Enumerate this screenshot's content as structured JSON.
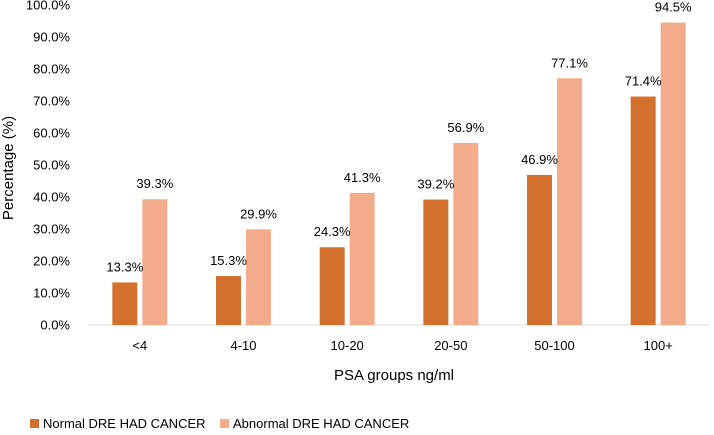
{
  "chart_data": {
    "type": "bar",
    "title": "",
    "xlabel": "PSA groups ng/ml",
    "ylabel": "Percentage (%)",
    "categories": [
      "<4",
      "4-10",
      "10-20",
      "20-50",
      "50-100",
      "100+"
    ],
    "series": [
      {
        "name": "Normal DRE HAD CANCER",
        "color": "#D4702E",
        "values": [
          13.3,
          15.3,
          24.3,
          39.2,
          46.9,
          71.4
        ],
        "labels": [
          "13.3%",
          "15.3%",
          "24.3%",
          "39.2%",
          "46.9%",
          "71.4%"
        ]
      },
      {
        "name": "Abnormal DRE HAD CANCER",
        "color": "#F2AC8C",
        "values": [
          39.3,
          29.9,
          41.3,
          56.9,
          77.1,
          94.5
        ],
        "labels": [
          "39.3%",
          "29.9%",
          "41.3%",
          "56.9%",
          "77.1%",
          "94.5%"
        ]
      }
    ],
    "ylim": [
      0,
      100
    ],
    "yticks": [
      0,
      10,
      20,
      30,
      40,
      50,
      60,
      70,
      80,
      90,
      100
    ],
    "ytick_labels": [
      "0.0%",
      "10.0%",
      "20.0%",
      "30.0%",
      "40.0%",
      "50.0%",
      "60.0%",
      "70.0%",
      "80.0%",
      "90.0%",
      "100.0%"
    ],
    "grid": false,
    "legend_position": "bottom-left",
    "axis_color": "#D9D9D9"
  }
}
